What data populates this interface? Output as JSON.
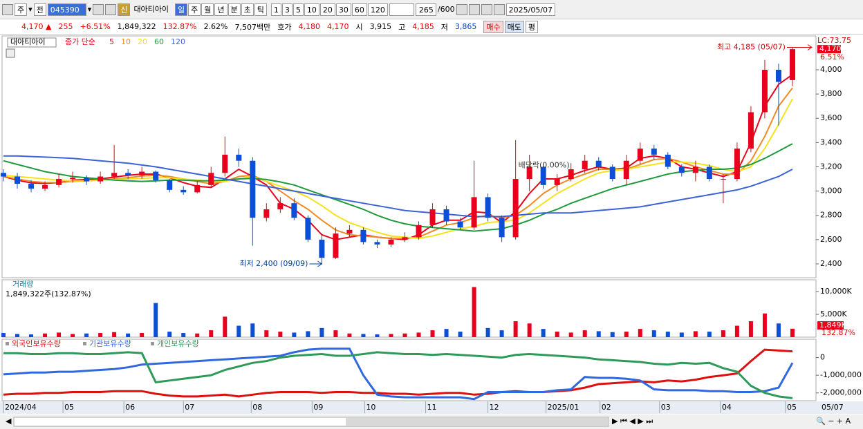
{
  "toolbar": {
    "market": "주",
    "prev": "전",
    "code": "045390",
    "credit": "신",
    "name": "대아티아이",
    "periods": [
      "일",
      "주",
      "월",
      "년",
      "분",
      "초",
      "틱"
    ],
    "intervals": [
      "1",
      "3",
      "5",
      "10",
      "20",
      "30",
      "60",
      "120"
    ],
    "count": "265",
    "max_count": "/600",
    "date": "2025/05/07"
  },
  "quote": {
    "price": "4,170 ▲",
    "change": "255",
    "change_pct": "+6.51%",
    "volume": "1,849,322",
    "volume_ratio": "132.87%",
    "turnover": "2.62%",
    "amount": "7,507백만",
    "bid_label": "호가",
    "ask": "4,180",
    "bid": "4,170",
    "open_label": "시",
    "open": "3,915",
    "high_label": "고",
    "high": "4,185",
    "low_label": "저",
    "low": "3,865",
    "buy": "매수",
    "sell": "매도",
    "avg": "평"
  },
  "chart_data": [
    {
      "type": "candlestick",
      "name": "대아티아이",
      "legend_prefix": "종가 단순",
      "xlim": [
        0,
        58.7
      ],
      "ylim": [
        2286,
        4279
      ],
      "yticks": [
        {
          "value": 4000,
          "label": "4,000"
        },
        {
          "value": 3800,
          "label": "3,800"
        },
        {
          "value": 3600,
          "label": "3,600"
        },
        {
          "value": 3400,
          "label": "3,400"
        },
        {
          "value": 3200,
          "label": "3,200"
        },
        {
          "value": 3000,
          "label": "3,000"
        },
        {
          "value": 2800,
          "label": "2,800"
        },
        {
          "value": 2600,
          "label": "2,600"
        },
        {
          "value": 2400,
          "label": "2,400"
        }
      ],
      "up_color": "#e8001c",
      "down_color": "#0a4fd6",
      "open": [
        3150,
        3120,
        3060,
        3020,
        3050,
        3100,
        3110,
        3080,
        3120,
        3150,
        3130,
        3160,
        3090,
        3010,
        2990,
        3050,
        3150,
        3300,
        3250,
        2780,
        2850,
        2900,
        2780,
        2600,
        2450,
        2650,
        2680,
        2580,
        2560,
        2600,
        2620,
        2720,
        2850,
        2750,
        2700,
        2950,
        2780,
        2620,
        3100,
        3200,
        3050,
        3100,
        3180,
        3250,
        3200,
        3100,
        3250,
        3350,
        3300,
        3200,
        3150,
        3200,
        3100,
        3100,
        3350,
        3650,
        4000,
        3915
      ],
      "high": [
        3180,
        3150,
        3090,
        3080,
        3140,
        3160,
        3130,
        3160,
        3380,
        3180,
        3200,
        3170,
        3100,
        3040,
        3080,
        3200,
        3450,
        3350,
        3280,
        2900,
        2950,
        2940,
        2800,
        2650,
        2700,
        2720,
        2700,
        2600,
        2620,
        2660,
        2750,
        2900,
        2880,
        2780,
        3250,
        2980,
        2800,
        3420,
        3300,
        3220,
        3140,
        3230,
        3300,
        3280,
        3220,
        3300,
        3400,
        3380,
        3320,
        3220,
        3250,
        3220,
        3140,
        3400,
        3700,
        4080,
        4050,
        4185
      ],
      "low": [
        3080,
        3020,
        2990,
        3000,
        3030,
        3070,
        3050,
        3060,
        3100,
        3100,
        3100,
        3070,
        2990,
        2970,
        2980,
        3030,
        3120,
        3200,
        2550,
        2750,
        2820,
        2760,
        2580,
        2400,
        2440,
        2620,
        2560,
        2530,
        2540,
        2580,
        2600,
        2700,
        2720,
        2680,
        2680,
        2750,
        2580,
        2600,
        3000,
        3020,
        3000,
        3080,
        3150,
        3170,
        3080,
        3050,
        3220,
        3260,
        3180,
        3120,
        3080,
        3080,
        2900,
        3080,
        3320,
        3600,
        3540,
        3865
      ],
      "close": [
        3120,
        3060,
        3020,
        3050,
        3100,
        3110,
        3080,
        3120,
        3150,
        3130,
        3160,
        3090,
        3010,
        2990,
        3050,
        3150,
        3300,
        3250,
        2780,
        2850,
        2900,
        2780,
        2600,
        2450,
        2650,
        2680,
        2580,
        2560,
        2600,
        2620,
        2720,
        2850,
        2750,
        2700,
        2950,
        2780,
        2620,
        3100,
        3200,
        3050,
        3100,
        3180,
        3250,
        3200,
        3100,
        3250,
        3350,
        3300,
        3200,
        3150,
        3200,
        3100,
        3100,
        3350,
        3650,
        4000,
        3900,
        4170
      ],
      "series": [
        {
          "name": "5",
          "color": "#e8001c",
          "values": [
            3120,
            3090,
            3067,
            3063,
            3070,
            3090,
            3095,
            3100,
            3115,
            3130,
            3140,
            3140,
            3110,
            3070,
            3040,
            3030,
            3100,
            3180,
            3120,
            3050,
            2900,
            2850,
            2760,
            2640,
            2600,
            2620,
            2640,
            2620,
            2610,
            2600,
            2640,
            2720,
            2760,
            2760,
            2830,
            2820,
            2740,
            2830,
            2980,
            3100,
            3100,
            3130,
            3170,
            3200,
            3180,
            3190,
            3270,
            3290,
            3270,
            3200,
            3180,
            3150,
            3120,
            3160,
            3400,
            3700,
            3880,
            3960
          ]
        },
        {
          "name": "10",
          "color": "#f08a24",
          "values": [
            3120,
            3100,
            3080,
            3070,
            3070,
            3080,
            3085,
            3090,
            3100,
            3110,
            3125,
            3130,
            3120,
            3100,
            3080,
            3060,
            3080,
            3120,
            3130,
            3080,
            3000,
            2920,
            2850,
            2760,
            2680,
            2640,
            2630,
            2620,
            2610,
            2610,
            2620,
            2670,
            2720,
            2740,
            2780,
            2800,
            2780,
            2800,
            2880,
            2980,
            3050,
            3100,
            3140,
            3180,
            3180,
            3180,
            3220,
            3260,
            3270,
            3240,
            3200,
            3170,
            3140,
            3140,
            3250,
            3450,
            3700,
            3850
          ]
        },
        {
          "name": "20",
          "color": "#f5e21a",
          "values": [
            3130,
            3120,
            3110,
            3100,
            3090,
            3085,
            3085,
            3090,
            3095,
            3100,
            3105,
            3110,
            3110,
            3100,
            3090,
            3080,
            3080,
            3100,
            3120,
            3080,
            3040,
            3000,
            2950,
            2880,
            2800,
            2740,
            2700,
            2660,
            2630,
            2620,
            2610,
            2630,
            2660,
            2690,
            2710,
            2740,
            2750,
            2760,
            2820,
            2900,
            2980,
            3040,
            3100,
            3150,
            3170,
            3180,
            3200,
            3220,
            3240,
            3240,
            3230,
            3210,
            3180,
            3160,
            3200,
            3350,
            3550,
            3760
          ]
        },
        {
          "name": "60",
          "color": "#1e9a3c",
          "values": [
            3250,
            3220,
            3190,
            3160,
            3140,
            3120,
            3110,
            3100,
            3090,
            3085,
            3080,
            3085,
            3090,
            3090,
            3085,
            3085,
            3090,
            3100,
            3105,
            3095,
            3075,
            3050,
            3010,
            2970,
            2930,
            2890,
            2850,
            2800,
            2760,
            2730,
            2710,
            2700,
            2690,
            2680,
            2670,
            2680,
            2690,
            2720,
            2760,
            2810,
            2850,
            2900,
            2940,
            2980,
            3020,
            3050,
            3080,
            3110,
            3140,
            3160,
            3170,
            3180,
            3180,
            3190,
            3220,
            3270,
            3330,
            3390
          ]
        },
        {
          "name": "120",
          "color": "#3b62d6",
          "values": [
            3290,
            3290,
            3285,
            3280,
            3275,
            3270,
            3260,
            3250,
            3240,
            3230,
            3215,
            3200,
            3180,
            3160,
            3140,
            3120,
            3100,
            3080,
            3060,
            3040,
            3020,
            3000,
            2980,
            2960,
            2940,
            2920,
            2900,
            2880,
            2860,
            2840,
            2830,
            2820,
            2810,
            2800,
            2790,
            2790,
            2790,
            2800,
            2810,
            2820,
            2820,
            2820,
            2830,
            2840,
            2850,
            2860,
            2870,
            2890,
            2910,
            2930,
            2950,
            2970,
            2990,
            3010,
            3040,
            3080,
            3120,
            3180
          ]
        }
      ],
      "lc_label": "LC:73.75",
      "price_label": "4,170",
      "change_label": "6.51%",
      "annotations": {
        "max": "최고 4,185 (05/07)",
        "min": "최저 2,400 (09/09)",
        "dividend": "배당락(0.00%)"
      }
    },
    {
      "type": "bar",
      "title": "거래량",
      "subtitle": "1,849,322주(132.87%)",
      "xlim": [
        0,
        58.7
      ],
      "ylim": [
        0,
        12600000
      ],
      "yticks": [
        {
          "value": 10000000,
          "label": "10,000K"
        },
        {
          "value": 5000000,
          "label": "5,000K"
        }
      ],
      "values": [
        900000,
        700000,
        600000,
        800000,
        1000000,
        700000,
        800000,
        900000,
        1100000,
        800000,
        900000,
        7500000,
        1200000,
        900000,
        800000,
        1500000,
        4500000,
        2500000,
        3000000,
        1500000,
        1200000,
        1000000,
        1300000,
        2000000,
        1500000,
        800000,
        700000,
        600000,
        700000,
        800000,
        1000000,
        1500000,
        1800000,
        1200000,
        11000000,
        2000000,
        1500000,
        3500000,
        3000000,
        1800000,
        1200000,
        1000000,
        1500000,
        1300000,
        1100000,
        1200000,
        1800000,
        1500000,
        1200000,
        1000000,
        1300000,
        1200000,
        1500000,
        2500000,
        3500000,
        5200000,
        3000000,
        1849322
      ],
      "last_label": "1,849K",
      "ratio_label": "132.87%"
    },
    {
      "type": "line",
      "xlim": [
        0,
        58.7
      ],
      "ylim": [
        -2440000,
        1040000
      ],
      "yticks": [
        0,
        {
          "value": -1000000,
          "label": "-1,000,000"
        },
        {
          "value": -2000000,
          "label": "-2,000,000"
        }
      ],
      "xticks": [
        {
          "value": 0,
          "label": "2024/04"
        },
        {
          "value": 4.3,
          "label": "05"
        },
        {
          "value": 8.7,
          "label": "06"
        },
        {
          "value": 13,
          "label": "07"
        },
        {
          "value": 17.9,
          "label": "08"
        },
        {
          "value": 22.3,
          "label": "09"
        },
        {
          "value": 26.1,
          "label": "10"
        },
        {
          "value": 30.5,
          "label": "11"
        },
        {
          "value": 35,
          "label": "12"
        },
        {
          "value": 39.2,
          "label": "2025/01"
        },
        {
          "value": 43.1,
          "label": "02"
        },
        {
          "value": 47.4,
          "label": "03"
        },
        {
          "value": 51.8,
          "label": "04"
        },
        {
          "value": 56.5,
          "label": "05"
        }
      ],
      "current_date_label": "05/07",
      "series": [
        {
          "name": "외국인보유수량",
          "color": "#dd1010",
          "values": [
            -2100000,
            -2050000,
            -2050000,
            -2000000,
            -2000000,
            -1950000,
            -1950000,
            -1950000,
            -1900000,
            -1900000,
            -1900000,
            -2050000,
            -2150000,
            -2200000,
            -2200000,
            -2150000,
            -2100000,
            -2200000,
            -2100000,
            -2000000,
            -1950000,
            -1950000,
            -1950000,
            -2000000,
            -1950000,
            -1950000,
            -2000000,
            -2000000,
            -2050000,
            -2050000,
            -2100000,
            -2050000,
            -2000000,
            -2000000,
            -2100000,
            -2050000,
            -1950000,
            -1900000,
            -1950000,
            -1950000,
            -1900000,
            -1850000,
            -1700000,
            -1500000,
            -1450000,
            -1400000,
            -1350000,
            -1400000,
            -1300000,
            -1350000,
            -1250000,
            -1100000,
            -1000000,
            -900000,
            -200000,
            450000,
            400000,
            350000
          ]
        },
        {
          "name": "기관보유수량",
          "color": "#3068e0",
          "values": [
            -950000,
            -900000,
            -850000,
            -850000,
            -800000,
            -800000,
            -750000,
            -700000,
            -650000,
            -550000,
            -400000,
            -350000,
            -300000,
            -250000,
            -200000,
            -150000,
            -100000,
            -50000,
            0,
            50000,
            100000,
            300000,
            450000,
            500000,
            500000,
            500000,
            -1000000,
            -2100000,
            -2200000,
            -2250000,
            -2250000,
            -2250000,
            -2250000,
            -2250000,
            -2350000,
            -1950000,
            -1950000,
            -1950000,
            -1950000,
            -1950000,
            -1850000,
            -1800000,
            -1100000,
            -1150000,
            -1150000,
            -1200000,
            -1300000,
            -1800000,
            -1850000,
            -1850000,
            -1850000,
            -1900000,
            -1900000,
            -1950000,
            -1950000,
            -1900000,
            -1700000,
            -300000
          ]
        },
        {
          "name": "개인보유수량",
          "color": "#2e9a5a",
          "values": [
            250000,
            250000,
            200000,
            200000,
            250000,
            250000,
            200000,
            200000,
            250000,
            300000,
            250000,
            -1400000,
            -1300000,
            -1200000,
            -1100000,
            -1000000,
            -700000,
            -500000,
            -300000,
            -200000,
            0,
            100000,
            150000,
            200000,
            100000,
            100000,
            200000,
            300000,
            250000,
            200000,
            200000,
            150000,
            200000,
            150000,
            100000,
            50000,
            0,
            150000,
            200000,
            150000,
            100000,
            50000,
            0,
            -100000,
            -150000,
            -200000,
            -250000,
            -350000,
            -400000,
            -300000,
            -350000,
            -300000,
            -600000,
            -800000,
            -1600000,
            -2000000,
            -2200000,
            -2300000
          ]
        }
      ]
    }
  ]
}
